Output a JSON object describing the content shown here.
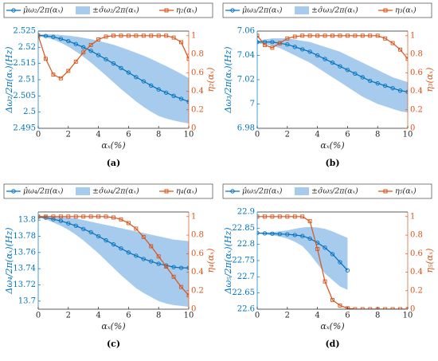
{
  "chart_data": [
    {
      "type": "line",
      "caption": "(a)",
      "xlabel": "αₓ(%)",
      "ylabel": "Δω₂/2π(αₓ)(Hz)",
      "y2label": "η₂(αₓ)",
      "x": [
        0,
        0.5,
        1,
        1.5,
        2,
        2.5,
        3,
        3.5,
        4,
        4.5,
        5,
        5.5,
        6,
        6.5,
        7,
        7.5,
        8,
        8.5,
        9,
        9.5,
        10
      ],
      "xlim": [
        0,
        10
      ],
      "xticks": [
        0,
        2,
        4,
        6,
        8,
        10
      ],
      "ylim": [
        2.495,
        2.525
      ],
      "yticks": [
        2.495,
        2.5,
        2.505,
        2.51,
        2.515,
        2.52,
        2.525
      ],
      "y2lim": [
        0,
        1.05
      ],
      "y2ticks": [
        0,
        0.2,
        0.4,
        0.6,
        0.8,
        1
      ],
      "series": [
        {
          "name": "μ̂ω₂/2π(αₓ)",
          "color": "#0072bd",
          "marker": "circle",
          "values": [
            2.5237,
            2.5235,
            2.5232,
            2.5226,
            2.5219,
            2.521,
            2.52,
            2.5189,
            2.5176,
            2.5163,
            2.515,
            2.5136,
            2.5122,
            2.5108,
            2.5095,
            2.5082,
            2.507,
            2.506,
            2.505,
            2.5041,
            2.5032
          ]
        },
        {
          "name": "±σ̂ω₂/2π(αₓ)",
          "color": "#a6cbec",
          "type": "band",
          "upper": [
            2.524,
            2.524,
            2.524,
            2.5238,
            2.5236,
            2.5233,
            2.5229,
            2.5225,
            2.522,
            2.5214,
            2.5208,
            2.52,
            2.5192,
            2.5183,
            2.5174,
            2.5164,
            2.5153,
            2.5142,
            2.513,
            2.5118,
            2.5105
          ],
          "lower": [
            2.5234,
            2.523,
            2.5224,
            2.5214,
            2.5202,
            2.5187,
            2.5171,
            2.5153,
            2.5133,
            2.5113,
            2.5092,
            2.5071,
            2.5052,
            2.5033,
            2.5016,
            2.5001,
            2.4988,
            2.498,
            2.4974,
            2.4969,
            2.4965
          ]
        },
        {
          "name": "η₂(αₓ)",
          "color": "#d95319",
          "marker": "square",
          "axis": "y2",
          "values": [
            1,
            0.75,
            0.58,
            0.54,
            0.62,
            0.72,
            0.82,
            0.9,
            0.96,
            0.99,
            1,
            1,
            1,
            1,
            1,
            1,
            1,
            1,
            0.98,
            0.93,
            0.75
          ]
        }
      ]
    },
    {
      "type": "line",
      "caption": "(b)",
      "xlabel": "αₓ(%)",
      "ylabel": "Δω₃/2π(αₓ)(Hz)",
      "y2label": "η₃(αₓ)",
      "x": [
        0,
        0.5,
        1,
        1.5,
        2,
        2.5,
        3,
        3.5,
        4,
        4.5,
        5,
        5.5,
        6,
        6.5,
        7,
        7.5,
        8,
        8.5,
        9,
        9.5,
        10
      ],
      "xlim": [
        0,
        10
      ],
      "xticks": [
        0,
        2,
        4,
        6,
        8,
        10
      ],
      "ylim": [
        6.98,
        7.06
      ],
      "yticks": [
        6.98,
        7,
        7.02,
        7.04,
        7.06
      ],
      "y2lim": [
        0,
        1.05
      ],
      "y2ticks": [
        0,
        0.2,
        0.4,
        0.6,
        0.8,
        1
      ],
      "series": [
        {
          "name": "μ̂ω₃/2π(αₓ)",
          "color": "#0072bd",
          "marker": "circle",
          "values": [
            7.051,
            7.051,
            7.051,
            7.05,
            7.049,
            7.047,
            7.045,
            7.043,
            7.04,
            7.037,
            7.034,
            7.031,
            7.028,
            7.025,
            7.022,
            7.019,
            7.017,
            7.015,
            7.013,
            7.011,
            7.01
          ]
        },
        {
          "name": "±σ̂ω₃/2π(αₓ)",
          "color": "#a6cbec",
          "type": "band",
          "upper": [
            7.052,
            7.053,
            7.054,
            7.054,
            7.054,
            7.053,
            7.052,
            7.051,
            7.049,
            7.047,
            7.045,
            7.043,
            7.04,
            7.037,
            7.034,
            7.031,
            7.028,
            7.025,
            7.022,
            7.02,
            7.018
          ],
          "lower": [
            7.05,
            7.049,
            7.048,
            7.046,
            7.043,
            7.04,
            7.037,
            7.034,
            7.03,
            7.026,
            7.022,
            7.018,
            7.014,
            7.01,
            7.006,
            7.003,
            7,
            6.998,
            6.996,
            6.994,
            6.993
          ]
        },
        {
          "name": "η₃(αₓ)",
          "color": "#d95319",
          "marker": "square",
          "axis": "y2",
          "values": [
            1,
            0.9,
            0.87,
            0.92,
            0.97,
            0.99,
            1,
            1,
            1,
            1,
            1,
            1,
            1,
            1,
            1,
            1,
            1,
            0.97,
            0.92,
            0.85,
            0.75
          ]
        }
      ]
    },
    {
      "type": "line",
      "caption": "(c)",
      "xlabel": "αₓ(%)",
      "ylabel": "Δω₄/2π(αₓ)(Hz)",
      "y2label": "η₄(αₓ)",
      "x": [
        0,
        0.5,
        1,
        1.5,
        2,
        2.5,
        3,
        3.5,
        4,
        4.5,
        5,
        5.5,
        6,
        6.5,
        7,
        7.5,
        8,
        8.5,
        9,
        9.5,
        10
      ],
      "xlim": [
        0,
        10
      ],
      "xticks": [
        0,
        2,
        4,
        6,
        8,
        10
      ],
      "ylim": [
        13.69,
        13.81
      ],
      "yticks": [
        13.7,
        13.72,
        13.74,
        13.76,
        13.78,
        13.8
      ],
      "y2lim": [
        0,
        1.05
      ],
      "y2ticks": [
        0,
        0.2,
        0.4,
        0.6,
        0.8,
        1
      ],
      "series": [
        {
          "name": "μ̂ω₄/2π(αₓ)",
          "color": "#0072bd",
          "marker": "circle",
          "values": [
            13.804,
            13.803,
            13.801,
            13.799,
            13.796,
            13.793,
            13.789,
            13.785,
            13.78,
            13.775,
            13.77,
            13.765,
            13.76,
            13.756,
            13.752,
            13.749,
            13.746,
            13.744,
            13.742,
            13.741,
            13.741
          ]
        },
        {
          "name": "±σ̂ω₄/2π(αₓ)",
          "color": "#a6cbec",
          "type": "band",
          "upper": [
            13.805,
            13.805,
            13.805,
            13.804,
            13.803,
            13.802,
            13.8,
            13.798,
            13.796,
            13.794,
            13.792,
            13.79,
            13.788,
            13.786,
            13.784,
            13.782,
            13.78,
            13.778,
            13.776,
            13.775,
            13.774
          ],
          "lower": [
            13.803,
            13.801,
            13.797,
            13.793,
            13.788,
            13.782,
            13.775,
            13.767,
            13.759,
            13.75,
            13.741,
            13.732,
            13.724,
            13.716,
            13.71,
            13.705,
            13.7,
            13.697,
            13.695,
            13.694,
            13.693
          ]
        },
        {
          "name": "η₄(αₓ)",
          "color": "#d95319",
          "marker": "square",
          "axis": "y2",
          "values": [
            1,
            1,
            1,
            1,
            1,
            1,
            1,
            1,
            1,
            1,
            0.99,
            0.97,
            0.93,
            0.87,
            0.78,
            0.68,
            0.57,
            0.46,
            0.35,
            0.24,
            0.15
          ]
        }
      ]
    },
    {
      "type": "line",
      "caption": "(d)",
      "xlabel": "αₓ(%)",
      "ylabel": "Δω₅/2π(αₓ)(Hz)",
      "y2label": "η₅(αₓ)",
      "x": [
        0,
        0.5,
        1,
        1.5,
        2,
        2.5,
        3,
        3.5,
        4,
        4.5,
        5,
        5.5,
        6,
        6.5,
        7,
        7.5,
        8,
        8.5,
        9,
        9.5,
        10
      ],
      "xlim": [
        0,
        10
      ],
      "xticks": [
        0,
        2,
        4,
        6,
        8,
        10
      ],
      "ylim": [
        22.6,
        22.9
      ],
      "yticks": [
        22.6,
        22.65,
        22.7,
        22.75,
        22.8,
        22.85,
        22.9
      ],
      "y2lim": [
        0,
        1.05
      ],
      "y2ticks": [
        0,
        0.2,
        0.4,
        0.6,
        0.8,
        1
      ],
      "series": [
        {
          "name": "μ̂ω₅/2π(αₓ)",
          "color": "#0072bd",
          "marker": "circle",
          "values": [
            22.835,
            22.834,
            22.833,
            22.832,
            22.831,
            22.829,
            22.826,
            22.818,
            22.805,
            22.79,
            22.77,
            22.745,
            22.72,
            null,
            null,
            null,
            null,
            null,
            null,
            null,
            null
          ]
        },
        {
          "name": "±σ̂ω₅/2π(αₓ)",
          "color": "#a6cbec",
          "type": "band",
          "upper": [
            22.836,
            22.837,
            22.838,
            22.84,
            22.843,
            22.848,
            22.852,
            22.854,
            22.852,
            22.848,
            22.84,
            22.83,
            22.82,
            null,
            null,
            null,
            null,
            null,
            null,
            null,
            null
          ],
          "lower": [
            22.834,
            22.831,
            22.828,
            22.824,
            22.818,
            22.808,
            22.795,
            22.77,
            22.74,
            22.71,
            22.69,
            22.67,
            22.66,
            null,
            null,
            null,
            null,
            null,
            null,
            null,
            null
          ]
        },
        {
          "name": "η₅(αₓ)",
          "color": "#d95319",
          "marker": "square",
          "axis": "y2",
          "values": [
            1,
            1,
            1,
            1,
            1,
            1,
            1,
            0.95,
            0.65,
            0.3,
            0.1,
            0.04,
            0.01,
            0,
            0,
            0,
            0,
            0,
            0,
            0,
            0
          ]
        }
      ]
    }
  ]
}
